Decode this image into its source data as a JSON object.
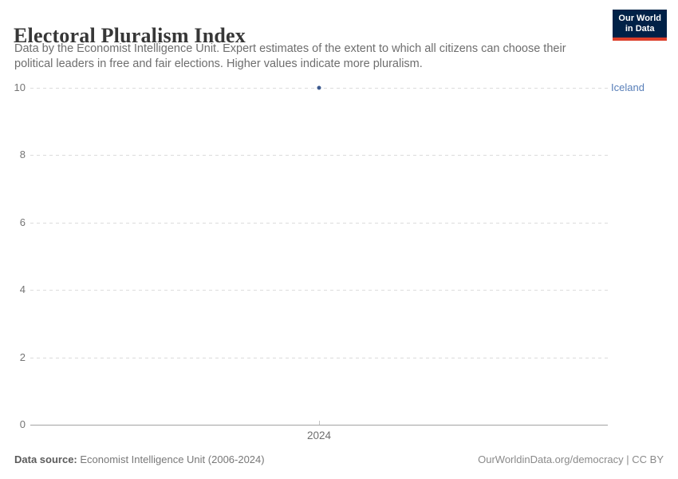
{
  "header": {
    "title": "Electoral Pluralism Index",
    "subtitle": "Data by the Economist Intelligence Unit. Expert estimates of the extent to which all citizens can choose their political leaders in free and fair elections. Higher values indicate more pluralism.",
    "logo": {
      "line1": "Our World",
      "line2": "in Data",
      "bg_color": "#002147",
      "accent_color": "#dc3e2a"
    }
  },
  "chart_data": {
    "type": "scatter",
    "title": "Electoral Pluralism Index",
    "xlabel": "",
    "ylabel": "",
    "x_ticks": [
      "2024"
    ],
    "y_ticks": [
      0,
      2,
      4,
      6,
      8,
      10
    ],
    "ylim": [
      0,
      10
    ],
    "grid": "horizontal-dashed",
    "legend_position": "right-inline-label",
    "series": [
      {
        "name": "Iceland",
        "color": "#3d5a8f",
        "points": [
          {
            "x": "2024",
            "y": 10
          }
        ]
      }
    ],
    "entity_label": {
      "text": "Iceland",
      "color": "#577eb8"
    }
  },
  "footer": {
    "source_label": "Data source:",
    "source_value": " Economist Intelligence Unit (2006-2024)",
    "link": "OurWorldinData.org/democracy | CC BY"
  }
}
